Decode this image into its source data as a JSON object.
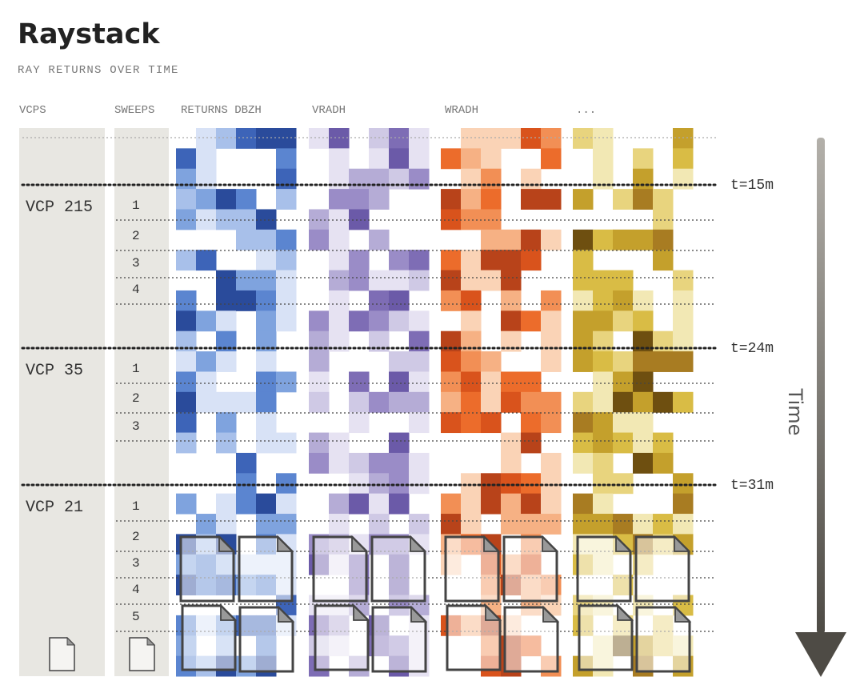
{
  "header": {
    "title": "Raystack",
    "subtitle": "RAY RETURNS OVER TIME"
  },
  "columns": [
    "VCPS",
    "SWEEPS",
    "RETURNS DBZH",
    "VRADH",
    "WRADH",
    "..."
  ],
  "time_marks": [
    "t=15m",
    "t=24m",
    "t=31m"
  ],
  "time_axis": "Time",
  "vcps": [
    {
      "label": "VCP 215",
      "sweeps": [
        "1",
        "2",
        "3",
        "4"
      ]
    },
    {
      "label": "VCP 35",
      "sweeps": [
        "1",
        "2",
        "3"
      ]
    },
    {
      "label": "VCP 21",
      "sweeps": [
        "1",
        "2",
        "3",
        "4",
        "5"
      ]
    }
  ]
}
